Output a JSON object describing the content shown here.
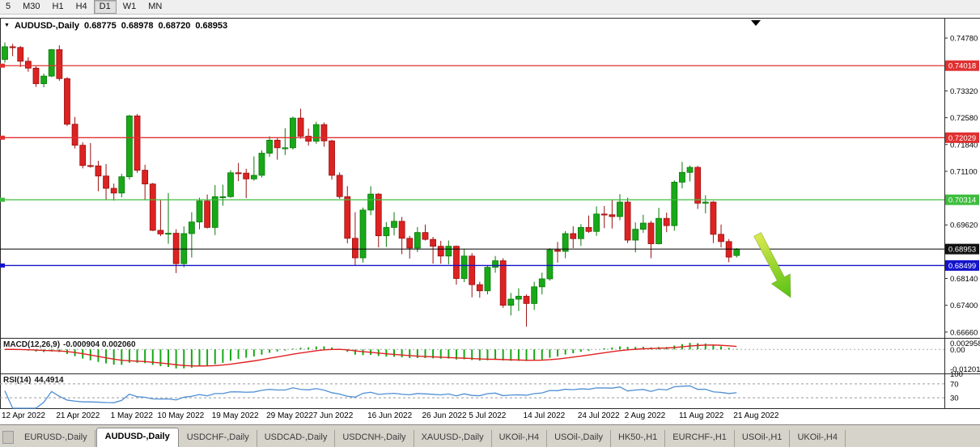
{
  "toolbar": {
    "timeframes": [
      "5",
      "M30",
      "H1",
      "H4",
      "D1",
      "W1",
      "MN"
    ],
    "active": "D1"
  },
  "chart_header": {
    "dropdown_icon": "▼",
    "title": "AUDUSD-,Daily",
    "open": "0.68775",
    "high": "0.68978",
    "low": "0.68720",
    "close": "0.68953"
  },
  "chart_data": {
    "type": "candlestick",
    "symbol": "AUDUSD-,Daily",
    "timeframe": "Daily",
    "price_range": {
      "top": 0.7534,
      "bottom": 0.665
    },
    "y_ticks": [
      0.7478,
      0.7332,
      0.7258,
      0.7184,
      0.711,
      0.6962,
      0.6814,
      0.674,
      0.6666
    ],
    "x_labels": [
      {
        "label": "12 Apr 2022",
        "i": 0
      },
      {
        "label": "21 Apr 2022",
        "i": 7
      },
      {
        "label": "1 May 2022",
        "i": 14
      },
      {
        "label": "10 May 2022",
        "i": 20
      },
      {
        "label": "19 May 2022",
        "i": 27
      },
      {
        "label": "29 May 2022",
        "i": 34
      },
      {
        "label": "7 Jun 2022",
        "i": 40
      },
      {
        "label": "16 Jun 2022",
        "i": 47
      },
      {
        "label": "26 Jun 2022",
        "i": 54
      },
      {
        "label": "5 Jul 2022",
        "i": 60
      },
      {
        "label": "14 Jul 2022",
        "i": 67
      },
      {
        "label": "24 Jul 2022",
        "i": 74
      },
      {
        "label": "2 Aug 2022",
        "i": 80
      },
      {
        "label": "11 Aug 2022",
        "i": 87
      },
      {
        "label": "21 Aug 2022",
        "i": 94
      }
    ],
    "ohlc": [
      [
        0.7419,
        0.7466,
        0.741,
        0.7454
      ],
      [
        0.7454,
        0.7462,
        0.7428,
        0.7452
      ],
      [
        0.7452,
        0.7456,
        0.7398,
        0.7414
      ],
      [
        0.7414,
        0.7425,
        0.7385,
        0.7395
      ],
      [
        0.7395,
        0.74,
        0.7343,
        0.7352
      ],
      [
        0.7352,
        0.738,
        0.7342,
        0.7373
      ],
      [
        0.7373,
        0.7448,
        0.737,
        0.7446
      ],
      [
        0.7446,
        0.7458,
        0.736,
        0.7366
      ],
      [
        0.7366,
        0.737,
        0.7235,
        0.724
      ],
      [
        0.724,
        0.726,
        0.7173,
        0.7182
      ],
      [
        0.7182,
        0.719,
        0.7118,
        0.7126
      ],
      [
        0.7126,
        0.7188,
        0.712,
        0.7125
      ],
      [
        0.7125,
        0.7139,
        0.7055,
        0.7097
      ],
      [
        0.7097,
        0.713,
        0.703,
        0.7063
      ],
      [
        0.7063,
        0.7076,
        0.7029,
        0.705
      ],
      [
        0.705,
        0.7103,
        0.7038,
        0.7095
      ],
      [
        0.7095,
        0.7266,
        0.7087,
        0.7263
      ],
      [
        0.7263,
        0.7268,
        0.7106,
        0.7113
      ],
      [
        0.7113,
        0.7128,
        0.703,
        0.7075
      ],
      [
        0.7075,
        0.7078,
        0.6945,
        0.6947
      ],
      [
        0.6947,
        0.7032,
        0.6931,
        0.6937
      ],
      [
        0.6937,
        0.705,
        0.691,
        0.6939
      ],
      [
        0.6939,
        0.695,
        0.6829,
        0.6855
      ],
      [
        0.6855,
        0.6958,
        0.6845,
        0.6938
      ],
      [
        0.6938,
        0.6997,
        0.6872,
        0.697
      ],
      [
        0.697,
        0.7037,
        0.695,
        0.7028
      ],
      [
        0.7028,
        0.7046,
        0.6952,
        0.6955
      ],
      [
        0.6955,
        0.7072,
        0.6934,
        0.704
      ],
      [
        0.704,
        0.7073,
        0.7015,
        0.704
      ],
      [
        0.704,
        0.7113,
        0.7037,
        0.7106
      ],
      [
        0.7106,
        0.7133,
        0.7083,
        0.7105
      ],
      [
        0.7105,
        0.7117,
        0.7036,
        0.7089
      ],
      [
        0.7089,
        0.7151,
        0.7084,
        0.7099
      ],
      [
        0.7099,
        0.7168,
        0.7093,
        0.716
      ],
      [
        0.716,
        0.7207,
        0.715,
        0.7196
      ],
      [
        0.7196,
        0.7203,
        0.7142,
        0.7175
      ],
      [
        0.7175,
        0.7229,
        0.7155,
        0.7175
      ],
      [
        0.7175,
        0.7261,
        0.717,
        0.7257
      ],
      [
        0.7257,
        0.7283,
        0.72,
        0.7207
      ],
      [
        0.7207,
        0.7228,
        0.7181,
        0.7193
      ],
      [
        0.7193,
        0.7247,
        0.7186,
        0.7239
      ],
      [
        0.7239,
        0.7245,
        0.7178,
        0.7194
      ],
      [
        0.7194,
        0.7197,
        0.7087,
        0.7099
      ],
      [
        0.7099,
        0.7107,
        0.7034,
        0.704
      ],
      [
        0.704,
        0.7069,
        0.6911,
        0.6925
      ],
      [
        0.6925,
        0.6997,
        0.685,
        0.6871
      ],
      [
        0.6871,
        0.701,
        0.6858,
        0.7003
      ],
      [
        0.7003,
        0.7069,
        0.6989,
        0.7047
      ],
      [
        0.7047,
        0.705,
        0.69,
        0.6932
      ],
      [
        0.6932,
        0.697,
        0.6901,
        0.6955
      ],
      [
        0.6955,
        0.6997,
        0.6933,
        0.6972
      ],
      [
        0.6972,
        0.6984,
        0.6881,
        0.6925
      ],
      [
        0.6925,
        0.6932,
        0.6869,
        0.6898
      ],
      [
        0.6898,
        0.6956,
        0.6887,
        0.6941
      ],
      [
        0.6941,
        0.6963,
        0.6919,
        0.6922
      ],
      [
        0.6922,
        0.6929,
        0.6855,
        0.6903
      ],
      [
        0.6903,
        0.6918,
        0.6855,
        0.6876
      ],
      [
        0.6876,
        0.6919,
        0.6853,
        0.6903
      ],
      [
        0.6903,
        0.6905,
        0.6797,
        0.6814
      ],
      [
        0.6814,
        0.6895,
        0.6804,
        0.6876
      ],
      [
        0.6876,
        0.6884,
        0.6762,
        0.6797
      ],
      [
        0.6797,
        0.6805,
        0.6761,
        0.678
      ],
      [
        0.678,
        0.6849,
        0.677,
        0.6845
      ],
      [
        0.6845,
        0.6876,
        0.683,
        0.6863
      ],
      [
        0.6863,
        0.687,
        0.6733,
        0.674
      ],
      [
        0.674,
        0.6774,
        0.6712,
        0.6757
      ],
      [
        0.6757,
        0.6787,
        0.6724,
        0.6765
      ],
      [
        0.6765,
        0.677,
        0.6681,
        0.6745
      ],
      [
        0.6745,
        0.6805,
        0.6727,
        0.6791
      ],
      [
        0.6791,
        0.683,
        0.677,
        0.6813
      ],
      [
        0.6813,
        0.6898,
        0.6808,
        0.6893
      ],
      [
        0.6893,
        0.6915,
        0.6858,
        0.6889
      ],
      [
        0.6889,
        0.6945,
        0.687,
        0.6938
      ],
      [
        0.6938,
        0.6958,
        0.6898,
        0.6924
      ],
      [
        0.6924,
        0.6964,
        0.6904,
        0.6955
      ],
      [
        0.6955,
        0.6988,
        0.694,
        0.6944
      ],
      [
        0.6944,
        0.7013,
        0.6932,
        0.6992
      ],
      [
        0.6992,
        0.7014,
        0.6953,
        0.699
      ],
      [
        0.699,
        0.7032,
        0.6952,
        0.6985
      ],
      [
        0.6985,
        0.7047,
        0.6975,
        0.7025
      ],
      [
        0.7025,
        0.7037,
        0.6912,
        0.692
      ],
      [
        0.692,
        0.6969,
        0.6886,
        0.695
      ],
      [
        0.695,
        0.699,
        0.694,
        0.6967
      ],
      [
        0.6967,
        0.6973,
        0.687,
        0.691
      ],
      [
        0.691,
        0.7009,
        0.6908,
        0.698
      ],
      [
        0.698,
        0.6996,
        0.6942,
        0.696
      ],
      [
        0.696,
        0.7085,
        0.6946,
        0.708
      ],
      [
        0.708,
        0.7136,
        0.7063,
        0.7107
      ],
      [
        0.7107,
        0.7126,
        0.7082,
        0.7121
      ],
      [
        0.7121,
        0.7125,
        0.7006,
        0.7022
      ],
      [
        0.7022,
        0.7044,
        0.6994,
        0.7025
      ],
      [
        0.7025,
        0.7028,
        0.6912,
        0.6936
      ],
      [
        0.6936,
        0.6963,
        0.69,
        0.6916
      ],
      [
        0.6916,
        0.6923,
        0.6859,
        0.6873
      ],
      [
        0.68775,
        0.68978,
        0.6872,
        0.68953
      ]
    ],
    "candle_colors": {
      "up": "#18a818",
      "up_stroke": "#0a7a0a",
      "down": "#dd2222",
      "down_stroke": "#991111"
    },
    "hlines": [
      {
        "value": 0.74018,
        "label": "0.74018",
        "color": "#e03030"
      },
      {
        "value": 0.72029,
        "label": "0.72029",
        "color": "#e03030"
      },
      {
        "value": 0.70314,
        "label": "0.70314",
        "color": "#3dbd3d"
      },
      {
        "value": 0.68499,
        "label": "0.68499",
        "color": "#1414cc"
      }
    ],
    "current_price": {
      "value": 0.68953,
      "label": "0.68953",
      "color": "#000000"
    },
    "indicators": {
      "macd": {
        "name": "MACD(12,26,9)",
        "values_text": "-0.000904 0.002060",
        "axis_labels": [
          "0.002958",
          "0.00",
          "-0.012015"
        ],
        "histogram_color": "#18a818",
        "signal_color": "#e02020"
      },
      "rsi": {
        "name": "RSI(14)",
        "value_text": "44,4914",
        "levels": [
          70,
          30
        ],
        "axis_labels": [
          "100",
          "70",
          "30"
        ],
        "line_color": "#4f8fd4"
      }
    },
    "annotation_arrow": {
      "from": [
        936,
        272
      ],
      "to": [
        977,
        350
      ],
      "color_top": "#dde84f",
      "color_bottom": "#55c213"
    }
  },
  "tabs": {
    "active_index": 1,
    "items": [
      "EURUSD-,Daily",
      "AUDUSD-,Daily",
      "USDCHF-,Daily",
      "USDCAD-,Daily",
      "USDCNH-,Daily",
      "XAUUSD-,Daily",
      "UKOil-,H4",
      "USOil-,Daily",
      "HK50-,H1",
      "EURCHF-,H1",
      "USOil-,H1",
      "UKOil-,H4"
    ]
  }
}
